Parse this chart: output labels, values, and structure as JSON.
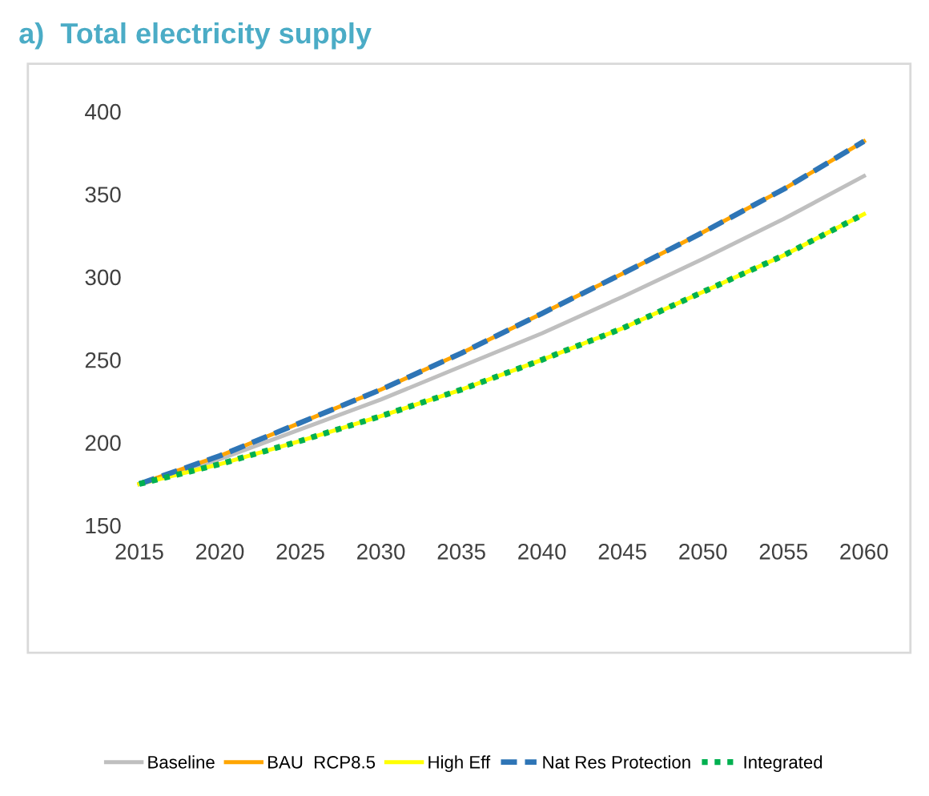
{
  "chart_data": {
    "type": "line",
    "title": "a)  Total electricity supply",
    "x": [
      2015,
      2020,
      2025,
      2030,
      2035,
      2040,
      2045,
      2050,
      2055,
      2060
    ],
    "series": [
      {
        "name": "Baseline",
        "color": "#bfbfbf",
        "line_style": "solid",
        "values": [
          175,
          190,
          208,
          226,
          246,
          266,
          288,
          311,
          335,
          361
        ]
      },
      {
        "name": "BAU  RCP8.5",
        "color": "#ffa500",
        "line_style": "solid",
        "values": [
          175,
          192,
          212,
          232,
          254,
          278,
          302,
          327,
          353,
          382
        ]
      },
      {
        "name": "High Eff",
        "color": "#ffff00",
        "line_style": "solid",
        "values": [
          175,
          187,
          201,
          216,
          232,
          250,
          269,
          291,
          313,
          338
        ]
      },
      {
        "name": "Nat Res Protection",
        "color": "#2e75b6",
        "line_style": "dashed",
        "values": [
          175,
          192,
          212,
          232,
          254,
          278,
          302,
          327,
          353,
          382
        ]
      },
      {
        "name": "Integrated",
        "color": "#00b050",
        "line_style": "dotted",
        "values": [
          175,
          187,
          201,
          216,
          232,
          250,
          269,
          291,
          313,
          338
        ]
      }
    ],
    "xlim": [
      2015,
      2060
    ],
    "xticks": [
      2015,
      2020,
      2025,
      2030,
      2035,
      2040,
      2045,
      2050,
      2055,
      2060
    ],
    "ylim": [
      150,
      400
    ],
    "yticks": [
      150,
      200,
      250,
      300,
      350,
      400
    ],
    "grid": false,
    "legend": "bottom",
    "marker": "none"
  }
}
